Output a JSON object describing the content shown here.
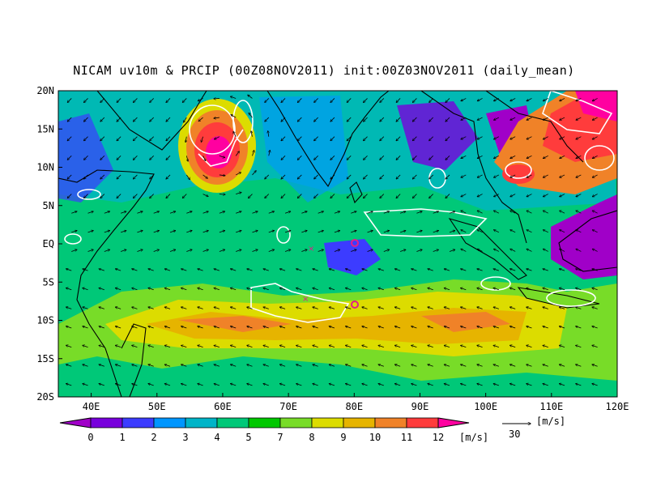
{
  "title": "NICAM uv10m & PRCIP (00Z08NOV2011) init:00Z03NOV2011 (daily_mean)",
  "map": {
    "lon_range": [
      35,
      120
    ],
    "lat_range": [
      -20,
      20
    ],
    "lon_ticks": [
      "40E",
      "50E",
      "60E",
      "70E",
      "80E",
      "90E",
      "100E",
      "110E",
      "120E"
    ],
    "lat_ticks": [
      "20N",
      "15N",
      "10N",
      "5N",
      "EQ",
      "5S",
      "10S",
      "15S",
      "20S"
    ]
  },
  "colorbar": {
    "labels": [
      "0",
      "1",
      "2",
      "3",
      "4",
      "5",
      "7",
      "8",
      "9",
      "10",
      "11",
      "12"
    ],
    "unit": "[m/s]",
    "colors": [
      "#a000c8",
      "#7800dc",
      "#3c3cff",
      "#0096ff",
      "#00b4c8",
      "#00c878",
      "#00c800",
      "#78dc28",
      "#dcdc00",
      "#e6b400",
      "#f08228",
      "#ff3c3c",
      "#ff00a0"
    ]
  },
  "reference_vector": {
    "value": "30",
    "unit": "[m/s]"
  },
  "colors": {
    "land_outline": "#000000",
    "precip_contour": "#ffffff",
    "marker": "#e0208a"
  }
}
